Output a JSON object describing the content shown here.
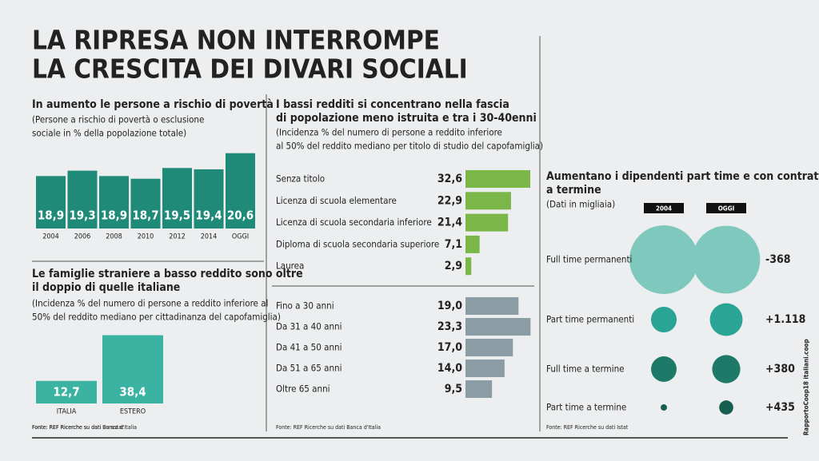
{
  "title": [
    "LA RIPRESA NON INTERROMPE",
    "LA CRESCITA DEI DIVARI SOCIALI"
  ],
  "side_label": "RapportoCoop18 italiani.coop",
  "chart_data": [
    {
      "type": "bar",
      "title": [
        "In aumento le persone a rischio di povertà"
      ],
      "subtitle": [
        "(Persone a rischio di povertà o esclusione",
        "sociale in % della popolazione totale)"
      ],
      "categories": [
        "2004",
        "2006",
        "2008",
        "2010",
        "2012",
        "2014",
        "OGGI"
      ],
      "values": [
        18.9,
        19.3,
        18.9,
        18.7,
        19.5,
        19.4,
        20.6
      ],
      "value_labels": [
        "18,9",
        "19,3",
        "18,9",
        "18,7",
        "19,5",
        "19,4",
        "20,6"
      ],
      "color": "#1f8a78",
      "ylim": [
        15,
        21
      ],
      "source": "Fonte: REF Ricerche su dati Eurostat"
    },
    {
      "type": "hbar",
      "title": [
        "I bassi redditi si concentrano nella fascia",
        "di popolazione meno istruita e tra i 30-40enni"
      ],
      "subtitle": [
        "(Incidenza % del numero di persone a reddito inferiore",
        "al 50% del reddito mediano per titolo di studio del capofamiglia)"
      ],
      "groups": [
        {
          "categories": [
            "Senza titolo",
            "Licenza di scuola elementare",
            "Licenza di scuola secondaria inferiore",
            "Diploma di scuola secondaria superiore",
            "Laurea"
          ],
          "values": [
            32.6,
            22.9,
            21.4,
            7.1,
            2.9
          ],
          "value_labels": [
            "32,6",
            "22,9",
            "21,4",
            "7,1",
            "2,9"
          ],
          "color": "#7ab648",
          "xlim": [
            0,
            33
          ]
        },
        {
          "categories": [
            "Fino a 30 anni",
            "Da 31 a 40 anni",
            "Da 41 a 50 anni",
            "Da 51 a 65 anni",
            "Oltre 65 anni"
          ],
          "values": [
            19.0,
            23.3,
            17.0,
            14.0,
            9.5
          ],
          "value_labels": [
            "19,0",
            "23,3",
            "17,0",
            "14,0",
            "9,5"
          ],
          "color": "#8c9ca5",
          "xlim": [
            0,
            23.5
          ]
        }
      ],
      "source": "Fonte: REF Ricerche su dati Banca d'Italia"
    },
    {
      "type": "bar",
      "title": [
        "Le famiglie straniere a basso reddito sono oltre",
        "il doppio di quelle italiane"
      ],
      "subtitle": [
        "(Incidenza % del numero di persone a reddito inferiore al",
        "50% del reddito mediano per cittadinanza del capofamiglia)"
      ],
      "categories": [
        "ITALIA",
        "ESTERO"
      ],
      "values": [
        12.7,
        38.4
      ],
      "value_labels": [
        "12,7",
        "38,4"
      ],
      "color": "#3bb3a3",
      "ylim": [
        0,
        40
      ],
      "source": "Fonte: REF Ricerche su dati Banca d'Italia"
    },
    {
      "type": "bubble",
      "title": [
        "Aumentano i dipendenti part time e con contratto",
        "a termine"
      ],
      "subtitle": [
        "(Dati in migliaia)"
      ],
      "categories": [
        "Full time permanenti",
        "Part time permanenti",
        "Full time a termine",
        "Part time a termine"
      ],
      "series": [
        {
          "name": "2004",
          "values": [
            12900,
            1800,
            1780,
            110
          ]
        },
        {
          "name": "OGGI",
          "values": [
            12532,
            2918,
            2160,
            545
          ]
        }
      ],
      "colors": [
        "#7fc8bd",
        "#2aa595",
        "#1d7a68",
        "#165e50"
      ],
      "changes": [
        -368,
        1118,
        380,
        435
      ],
      "change_labels": [
        "-368",
        "+1.118",
        "+380",
        "+435"
      ],
      "source": "Fonte: REF Ricerche su dati Istat"
    }
  ]
}
